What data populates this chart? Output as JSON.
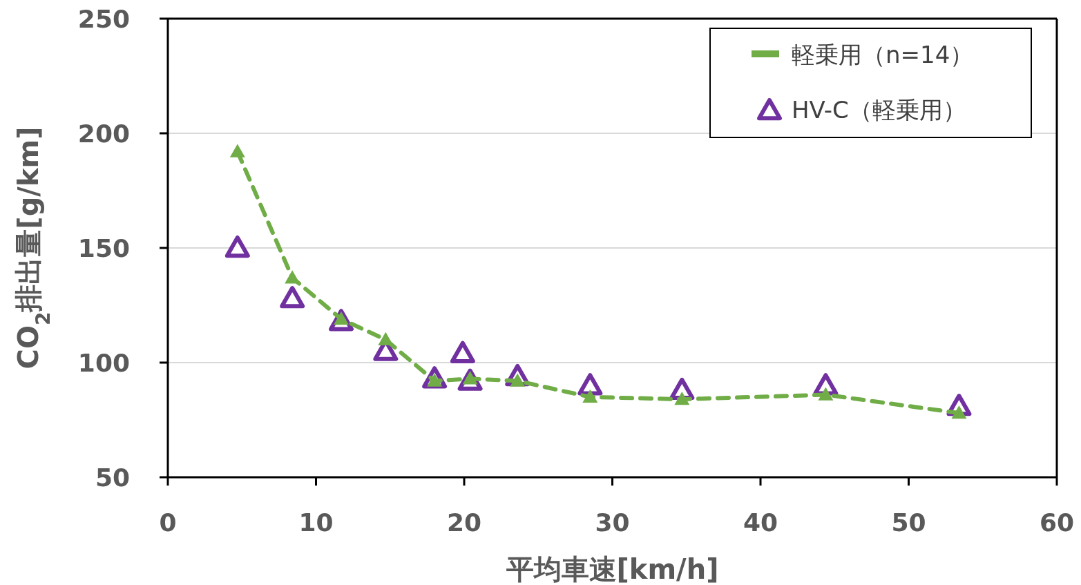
{
  "chart_data": {
    "type": "scatter",
    "xlabel": "平均車速[km/h]",
    "ylabel": "CO$_{2}$排出量[g/km]",
    "xlim": [
      0,
      60
    ],
    "xticks": [
      0,
      10,
      20,
      30,
      40,
      50,
      60
    ],
    "ylim": [
      50,
      250
    ],
    "yticks": [
      50,
      100,
      150,
      200,
      250
    ],
    "grid": "y",
    "legend": "top right",
    "marker": "triangle",
    "series": [
      {
        "name": "軽乗用（n=14）",
        "type": "line",
        "line_style": "dashed",
        "color": "#70ad47",
        "x": [
          4.7,
          8.4,
          11.7,
          14.7,
          18.0,
          20.4,
          23.6,
          28.5,
          34.7,
          44.4,
          53.4
        ],
        "values": [
          192,
          137,
          119,
          110,
          92,
          93,
          92,
          85,
          84,
          86,
          78
        ]
      },
      {
        "name": "HV-C（軽乗用）",
        "color": "#7030a0",
        "x": [
          4.7,
          8.4,
          11.7,
          14.7,
          18.0,
          19.9,
          20.4,
          23.6,
          28.5,
          34.7,
          44.4,
          53.4
        ],
        "values": [
          150,
          128,
          118,
          105,
          93,
          104,
          92,
          94,
          90,
          88,
          90,
          81
        ]
      }
    ]
  }
}
